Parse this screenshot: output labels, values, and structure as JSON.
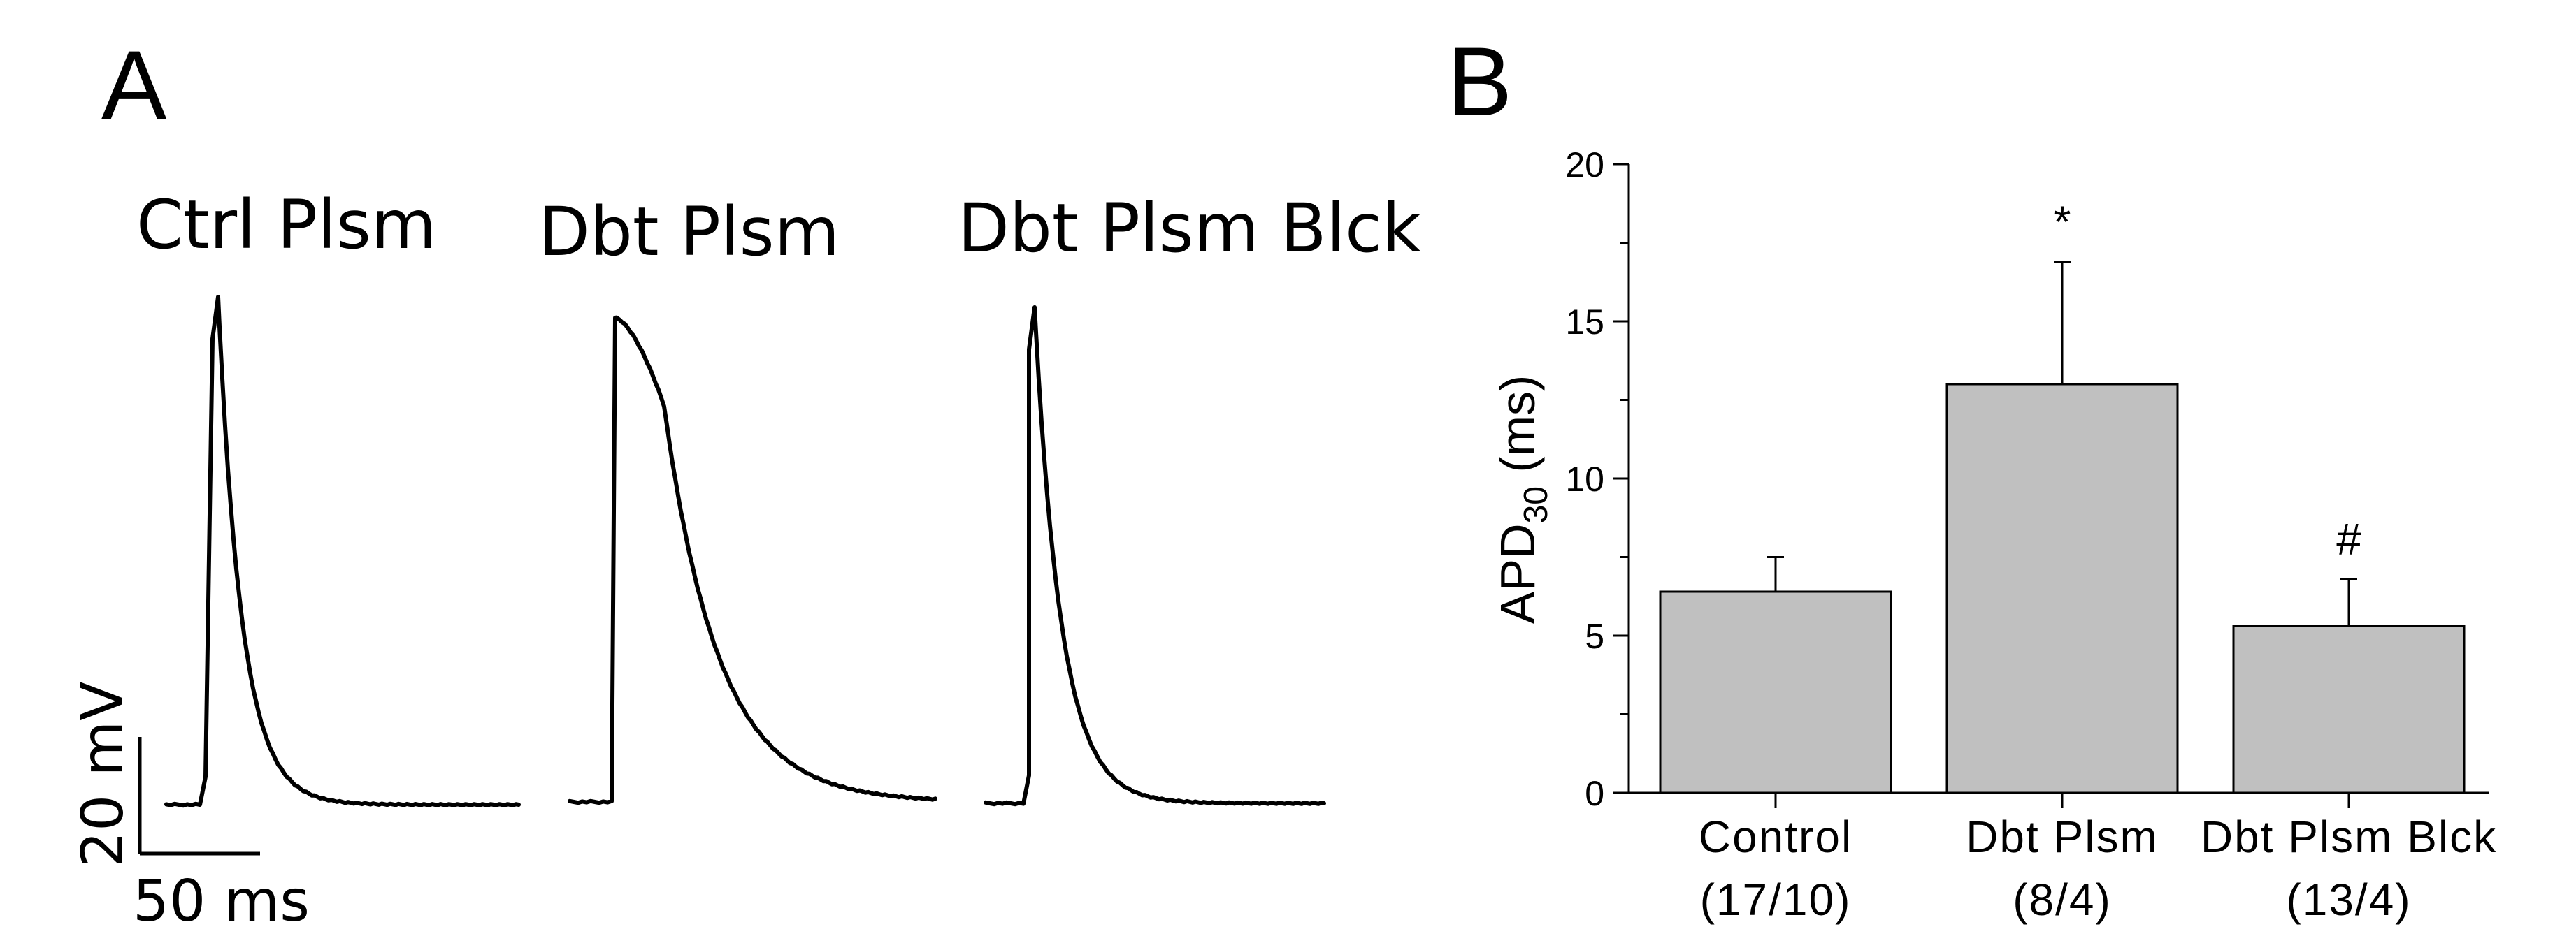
{
  "panel_a": {
    "letter": "A",
    "traces": [
      {
        "label": "Ctrl Plsm",
        "shape": "short"
      },
      {
        "label": "Dbt Plsm",
        "shape": "long"
      },
      {
        "label": "Dbt Plsm Blck",
        "shape": "short"
      }
    ],
    "scale_bar": {
      "voltage_label": "20 mV",
      "time_label": "50 ms"
    }
  },
  "panel_b": {
    "letter": "B",
    "ylabel_main": "APD",
    "ylabel_sub": "30",
    "ylabel_unit": " (ms)"
  },
  "chart_data": {
    "type": "bar",
    "title": "",
    "xlabel": "",
    "ylabel": "APD30 (ms)",
    "categories": [
      "Control",
      "Dbt Plsm",
      "Dbt Plsm Blck"
    ],
    "category_n": [
      "(17/10)",
      "(8/4)",
      "(13/4)"
    ],
    "values": [
      6.4,
      13.0,
      5.3
    ],
    "errors": [
      1.1,
      3.9,
      1.5
    ],
    "annotations": [
      "",
      "*",
      "#"
    ],
    "ylim": [
      0,
      20
    ],
    "yticks": [
      0,
      5,
      10,
      15,
      20
    ],
    "bar_color": "#c0c0c0",
    "grid": false
  }
}
